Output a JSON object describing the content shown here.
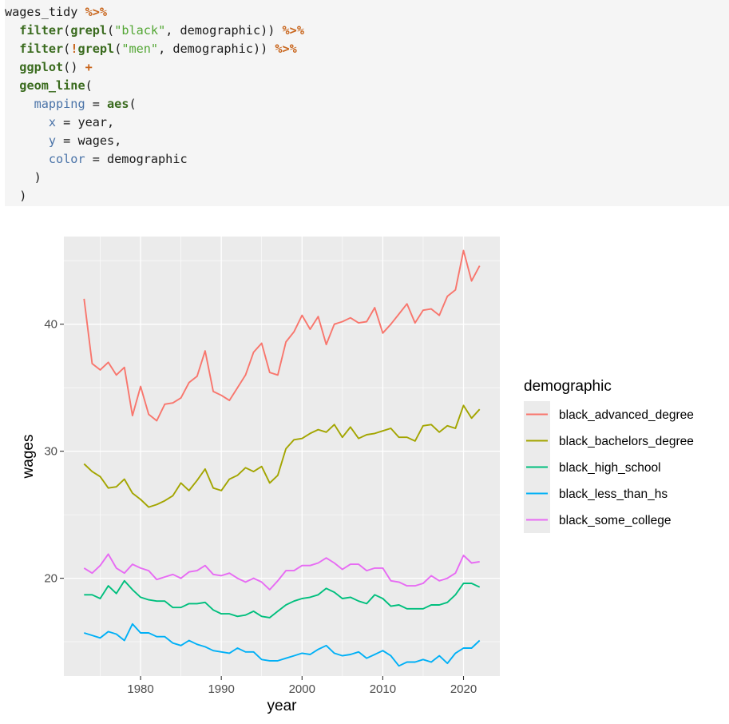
{
  "code": {
    "lines": [
      [
        {
          "t": "wages_tidy ",
          "c": ""
        },
        {
          "t": "%>%",
          "c": "pipe"
        }
      ],
      [
        {
          "t": "  ",
          "c": ""
        },
        {
          "t": "filter",
          "c": "kw"
        },
        {
          "t": "(",
          "c": ""
        },
        {
          "t": "grepl",
          "c": "kw"
        },
        {
          "t": "(",
          "c": ""
        },
        {
          "t": "\"black\"",
          "c": "str"
        },
        {
          "t": ", demographic)) ",
          "c": ""
        },
        {
          "t": "%>%",
          "c": "pipe"
        }
      ],
      [
        {
          "t": "  ",
          "c": ""
        },
        {
          "t": "filter",
          "c": "kw"
        },
        {
          "t": "(",
          "c": ""
        },
        {
          "t": "!",
          "c": "pipe"
        },
        {
          "t": "grepl",
          "c": "kw"
        },
        {
          "t": "(",
          "c": ""
        },
        {
          "t": "\"men\"",
          "c": "str"
        },
        {
          "t": ", demographic)) ",
          "c": ""
        },
        {
          "t": "%>%",
          "c": "pipe"
        }
      ],
      [
        {
          "t": "  ",
          "c": ""
        },
        {
          "t": "ggplot",
          "c": "kw"
        },
        {
          "t": "() ",
          "c": ""
        },
        {
          "t": "+",
          "c": "pipe"
        }
      ],
      [
        {
          "t": "  ",
          "c": ""
        },
        {
          "t": "geom_line",
          "c": "kw"
        },
        {
          "t": "(",
          "c": ""
        }
      ],
      [
        {
          "t": "    ",
          "c": ""
        },
        {
          "t": "mapping",
          "c": "arg"
        },
        {
          "t": " = ",
          "c": ""
        },
        {
          "t": "aes",
          "c": "kw"
        },
        {
          "t": "(",
          "c": ""
        }
      ],
      [
        {
          "t": "      ",
          "c": ""
        },
        {
          "t": "x",
          "c": "arg"
        },
        {
          "t": " = year,",
          "c": ""
        }
      ],
      [
        {
          "t": "      ",
          "c": ""
        },
        {
          "t": "y",
          "c": "arg"
        },
        {
          "t": " = wages,",
          "c": ""
        }
      ],
      [
        {
          "t": "      ",
          "c": ""
        },
        {
          "t": "color",
          "c": "arg"
        },
        {
          "t": " = demographic",
          "c": ""
        }
      ],
      [
        {
          "t": "    )",
          "c": ""
        }
      ],
      [
        {
          "t": "  )",
          "c": ""
        }
      ]
    ]
  },
  "chart_data": {
    "type": "line",
    "title": "",
    "xlabel": "year",
    "ylabel": "wages",
    "xlim": [
      1970.5,
      2024.5
    ],
    "ylim": [
      12.3,
      46.9
    ],
    "x_ticks": [
      1980,
      1990,
      2000,
      2010,
      2020
    ],
    "y_ticks": [
      20,
      30,
      40
    ],
    "grid": true,
    "legend": {
      "title": "demographic",
      "position": "right"
    },
    "x": [
      1973,
      1974,
      1975,
      1976,
      1977,
      1978,
      1979,
      1980,
      1981,
      1982,
      1983,
      1984,
      1985,
      1986,
      1987,
      1988,
      1989,
      1990,
      1991,
      1992,
      1993,
      1994,
      1995,
      1996,
      1997,
      1998,
      1999,
      2000,
      2001,
      2002,
      2003,
      2004,
      2005,
      2006,
      2007,
      2008,
      2009,
      2010,
      2011,
      2012,
      2013,
      2014,
      2015,
      2016,
      2017,
      2018,
      2019,
      2020,
      2021,
      2022
    ],
    "series": [
      {
        "name": "black_advanced_degree",
        "color": "#F8766D",
        "values": [
          42.0,
          36.9,
          36.4,
          37.0,
          36.0,
          36.6,
          32.8,
          35.1,
          32.9,
          32.4,
          33.7,
          33.8,
          34.2,
          35.4,
          35.9,
          37.9,
          34.7,
          34.4,
          34.0,
          35.0,
          36.0,
          37.8,
          38.5,
          36.2,
          36.0,
          38.6,
          39.4,
          40.7,
          39.6,
          40.6,
          38.4,
          40.0,
          40.2,
          40.5,
          40.1,
          40.2,
          41.3,
          39.3,
          40.0,
          40.8,
          41.6,
          40.1,
          41.1,
          41.2,
          40.7,
          42.2,
          42.7,
          45.8,
          43.4,
          44.6
        ]
      },
      {
        "name": "black_bachelors_degree",
        "color": "#A3A500",
        "values": [
          29.0,
          28.4,
          28.0,
          27.1,
          27.2,
          27.8,
          26.7,
          26.2,
          25.6,
          25.8,
          26.1,
          26.5,
          27.5,
          26.9,
          27.7,
          28.6,
          27.1,
          26.9,
          27.8,
          28.1,
          28.7,
          28.4,
          28.8,
          27.5,
          28.1,
          30.2,
          30.9,
          31.0,
          31.4,
          31.7,
          31.5,
          32.1,
          31.1,
          31.9,
          31.0,
          31.3,
          31.4,
          31.6,
          31.8,
          31.1,
          31.1,
          30.8,
          32.0,
          32.1,
          31.5,
          32.0,
          31.8,
          33.6,
          32.6,
          33.3
        ]
      },
      {
        "name": "black_high_school",
        "color": "#00BF7D",
        "values": [
          18.7,
          18.7,
          18.4,
          19.4,
          18.8,
          19.8,
          19.1,
          18.5,
          18.3,
          18.2,
          18.2,
          17.7,
          17.7,
          18.0,
          18.0,
          18.1,
          17.5,
          17.2,
          17.2,
          17.0,
          17.1,
          17.4,
          17.0,
          16.9,
          17.4,
          17.9,
          18.2,
          18.4,
          18.5,
          18.7,
          19.2,
          18.9,
          18.4,
          18.5,
          18.2,
          18.0,
          18.7,
          18.4,
          17.8,
          17.9,
          17.6,
          17.6,
          17.6,
          17.9,
          17.9,
          18.1,
          18.7,
          19.6,
          19.6,
          19.3
        ]
      },
      {
        "name": "black_less_than_hs",
        "color": "#00B0F6",
        "values": [
          15.7,
          15.5,
          15.3,
          15.8,
          15.6,
          15.1,
          16.4,
          15.7,
          15.7,
          15.4,
          15.4,
          14.9,
          14.7,
          15.1,
          14.8,
          14.6,
          14.3,
          14.2,
          14.1,
          14.5,
          14.2,
          14.2,
          13.6,
          13.5,
          13.5,
          13.7,
          13.9,
          14.1,
          14.0,
          14.4,
          14.7,
          14.1,
          13.9,
          14.0,
          14.2,
          13.7,
          14.0,
          14.3,
          13.9,
          13.1,
          13.4,
          13.4,
          13.6,
          13.4,
          13.9,
          13.3,
          14.1,
          14.5,
          14.5,
          15.1
        ]
      },
      {
        "name": "black_some_college",
        "color": "#E76BF3",
        "values": [
          20.8,
          20.4,
          21.0,
          21.9,
          20.8,
          20.4,
          21.1,
          20.8,
          20.6,
          19.9,
          20.1,
          20.3,
          20.0,
          20.5,
          20.6,
          21.0,
          20.3,
          20.2,
          20.4,
          20.0,
          19.7,
          20.0,
          19.7,
          19.1,
          19.8,
          20.6,
          20.6,
          21.0,
          21.0,
          21.2,
          21.6,
          21.2,
          20.7,
          21.1,
          21.1,
          20.6,
          20.8,
          20.8,
          19.8,
          19.7,
          19.4,
          19.4,
          19.6,
          20.2,
          19.8,
          20.0,
          20.4,
          21.8,
          21.2,
          21.3
        ]
      }
    ]
  }
}
